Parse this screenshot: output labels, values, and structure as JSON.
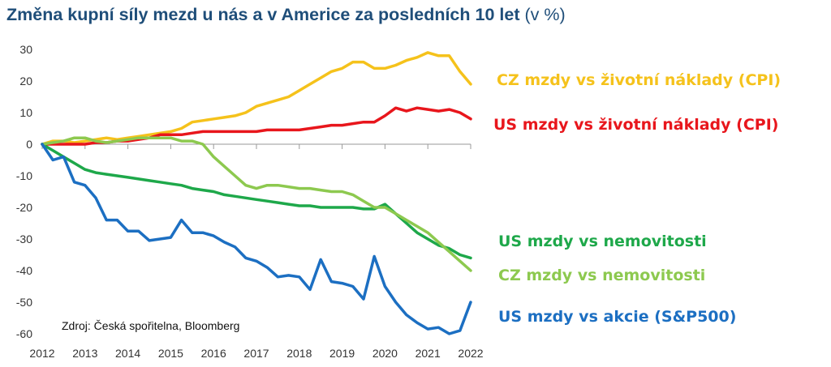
{
  "title": {
    "main": "Změna kupní síly mezd u nás a v Americe za posledních 10 let",
    "unit": "(v %)"
  },
  "source": "Zdroj: Česká spořitelna, Bloomberg",
  "chart_data": {
    "type": "line",
    "xlabel": "",
    "ylabel": "",
    "xlim": [
      2012,
      2022
    ],
    "ylim": [
      -60,
      30
    ],
    "x_ticks": [
      "2012",
      "2013",
      "2014",
      "2015",
      "2016",
      "2017",
      "2018",
      "2019",
      "2020",
      "2021",
      "2022"
    ],
    "y_ticks": [
      30,
      20,
      10,
      0,
      -10,
      -20,
      -30,
      -40,
      -50,
      -60
    ],
    "grid": false,
    "series": [
      {
        "name": "CZ mzdy vs životní náklady (CPI)",
        "color": "#f5c21b",
        "x": [
          2012,
          2012.25,
          2012.5,
          2012.75,
          2013,
          2013.25,
          2013.5,
          2013.75,
          2014,
          2014.25,
          2014.5,
          2014.75,
          2015,
          2015.25,
          2015.5,
          2015.75,
          2016,
          2016.25,
          2016.5,
          2016.75,
          2017,
          2017.25,
          2017.5,
          2017.75,
          2018,
          2018.25,
          2018.5,
          2018.75,
          2019,
          2019.25,
          2019.5,
          2019.75,
          2020,
          2020.25,
          2020.5,
          2020.75,
          2021,
          2021.25,
          2021.5,
          2021.75,
          2022
        ],
        "y": [
          0,
          1,
          1,
          0.5,
          1,
          1.5,
          2,
          1.5,
          2,
          2.5,
          3,
          3.5,
          4,
          5,
          7,
          7.5,
          8,
          8.5,
          9,
          10,
          12,
          13,
          14,
          15,
          17,
          19,
          21,
          23,
          24,
          26,
          26,
          24,
          24,
          25,
          26.5,
          27.5,
          29,
          28,
          28,
          23,
          19
        ]
      },
      {
        "name": "US mzdy vs životní náklady (CPI)",
        "color": "#e8161c",
        "x": [
          2012,
          2012.25,
          2012.5,
          2012.75,
          2013,
          2013.25,
          2013.5,
          2013.75,
          2014,
          2014.25,
          2014.5,
          2014.75,
          2015,
          2015.25,
          2015.5,
          2015.75,
          2016,
          2016.25,
          2016.5,
          2016.75,
          2017,
          2017.25,
          2017.5,
          2017.75,
          2018,
          2018.25,
          2018.5,
          2018.75,
          2019,
          2019.25,
          2019.5,
          2019.75,
          2020,
          2020.25,
          2020.5,
          2020.75,
          2021,
          2021.25,
          2021.5,
          2021.75,
          2022
        ],
        "y": [
          0,
          0,
          0,
          0,
          0,
          0.5,
          0.5,
          1,
          1,
          1.5,
          2,
          3,
          3,
          3,
          3.5,
          4,
          4,
          4,
          4,
          4,
          4,
          4.5,
          4.5,
          4.5,
          4.5,
          5,
          5.5,
          6,
          6,
          6.5,
          7,
          7,
          9,
          11.5,
          10.5,
          11.5,
          11,
          10.5,
          11,
          10,
          8
        ]
      },
      {
        "name": "US mzdy vs nemovitosti",
        "color": "#1ea84a",
        "x": [
          2012,
          2012.25,
          2012.5,
          2012.75,
          2013,
          2013.25,
          2013.5,
          2013.75,
          2014,
          2014.25,
          2014.5,
          2014.75,
          2015,
          2015.25,
          2015.5,
          2015.75,
          2016,
          2016.25,
          2016.5,
          2016.75,
          2017,
          2017.25,
          2017.5,
          2017.75,
          2018,
          2018.25,
          2018.5,
          2018.75,
          2019,
          2019.25,
          2019.5,
          2019.75,
          2020,
          2020.25,
          2020.5,
          2020.75,
          2021,
          2021.25,
          2021.5,
          2021.75,
          2022
        ],
        "y": [
          0,
          -2,
          -4,
          -6,
          -8,
          -9,
          -9.5,
          -10,
          -10.5,
          -11,
          -11.5,
          -12,
          -12.5,
          -13,
          -14,
          -14.5,
          -15,
          -16,
          -16.5,
          -17,
          -17.5,
          -18,
          -18.5,
          -19,
          -19.5,
          -19.5,
          -20,
          -20,
          -20,
          -20,
          -20.5,
          -20.5,
          -19,
          -22,
          -25,
          -28,
          -30,
          -32,
          -33,
          -35,
          -36
        ]
      },
      {
        "name": "CZ mzdy vs nemovitosti",
        "color": "#8dc94f",
        "x": [
          2012,
          2012.25,
          2012.5,
          2012.75,
          2013,
          2013.25,
          2013.5,
          2013.75,
          2014,
          2014.25,
          2014.5,
          2014.75,
          2015,
          2015.25,
          2015.5,
          2015.75,
          2016,
          2016.25,
          2016.5,
          2016.75,
          2017,
          2017.25,
          2017.5,
          2017.75,
          2018,
          2018.25,
          2018.5,
          2018.75,
          2019,
          2019.25,
          2019.5,
          2019.75,
          2020,
          2020.25,
          2020.5,
          2020.75,
          2021,
          2021.25,
          2021.5,
          2021.75,
          2022
        ],
        "y": [
          0,
          0.5,
          1,
          2,
          2,
          1,
          0.5,
          1,
          1.5,
          2,
          2,
          2,
          2,
          1,
          1,
          0,
          -4,
          -7,
          -10,
          -13,
          -14,
          -13,
          -13,
          -13.5,
          -14,
          -14,
          -14.5,
          -15,
          -15,
          -16,
          -18,
          -20,
          -20,
          -22,
          -24,
          -26,
          -28,
          -31,
          -34,
          -37,
          -40
        ]
      },
      {
        "name": "US mzdy vs akcie (S&P500)",
        "color": "#1c6fc2",
        "x": [
          2012,
          2012.25,
          2012.5,
          2012.75,
          2013,
          2013.25,
          2013.5,
          2013.75,
          2014,
          2014.25,
          2014.5,
          2014.75,
          2015,
          2015.25,
          2015.5,
          2015.75,
          2016,
          2016.25,
          2016.5,
          2016.75,
          2017,
          2017.25,
          2017.5,
          2017.75,
          2018,
          2018.25,
          2018.5,
          2018.75,
          2019,
          2019.25,
          2019.5,
          2019.75,
          2020,
          2020.25,
          2020.5,
          2020.75,
          2021,
          2021.25,
          2021.5,
          2021.75,
          2022
        ],
        "y": [
          0,
          -5,
          -4,
          -12,
          -13,
          -17,
          -24,
          -24,
          -27.5,
          -27.5,
          -30.5,
          -30,
          -29.5,
          -24,
          -28,
          -28,
          -29,
          -31,
          -32.5,
          -36,
          -37,
          -39,
          -42,
          -41.5,
          -42,
          -46,
          -36.5,
          -43.5,
          -44,
          -45,
          -49,
          -35.5,
          -45,
          -50,
          -54,
          -56.5,
          -58.5,
          -58,
          -60,
          -59,
          -50
        ]
      }
    ]
  }
}
